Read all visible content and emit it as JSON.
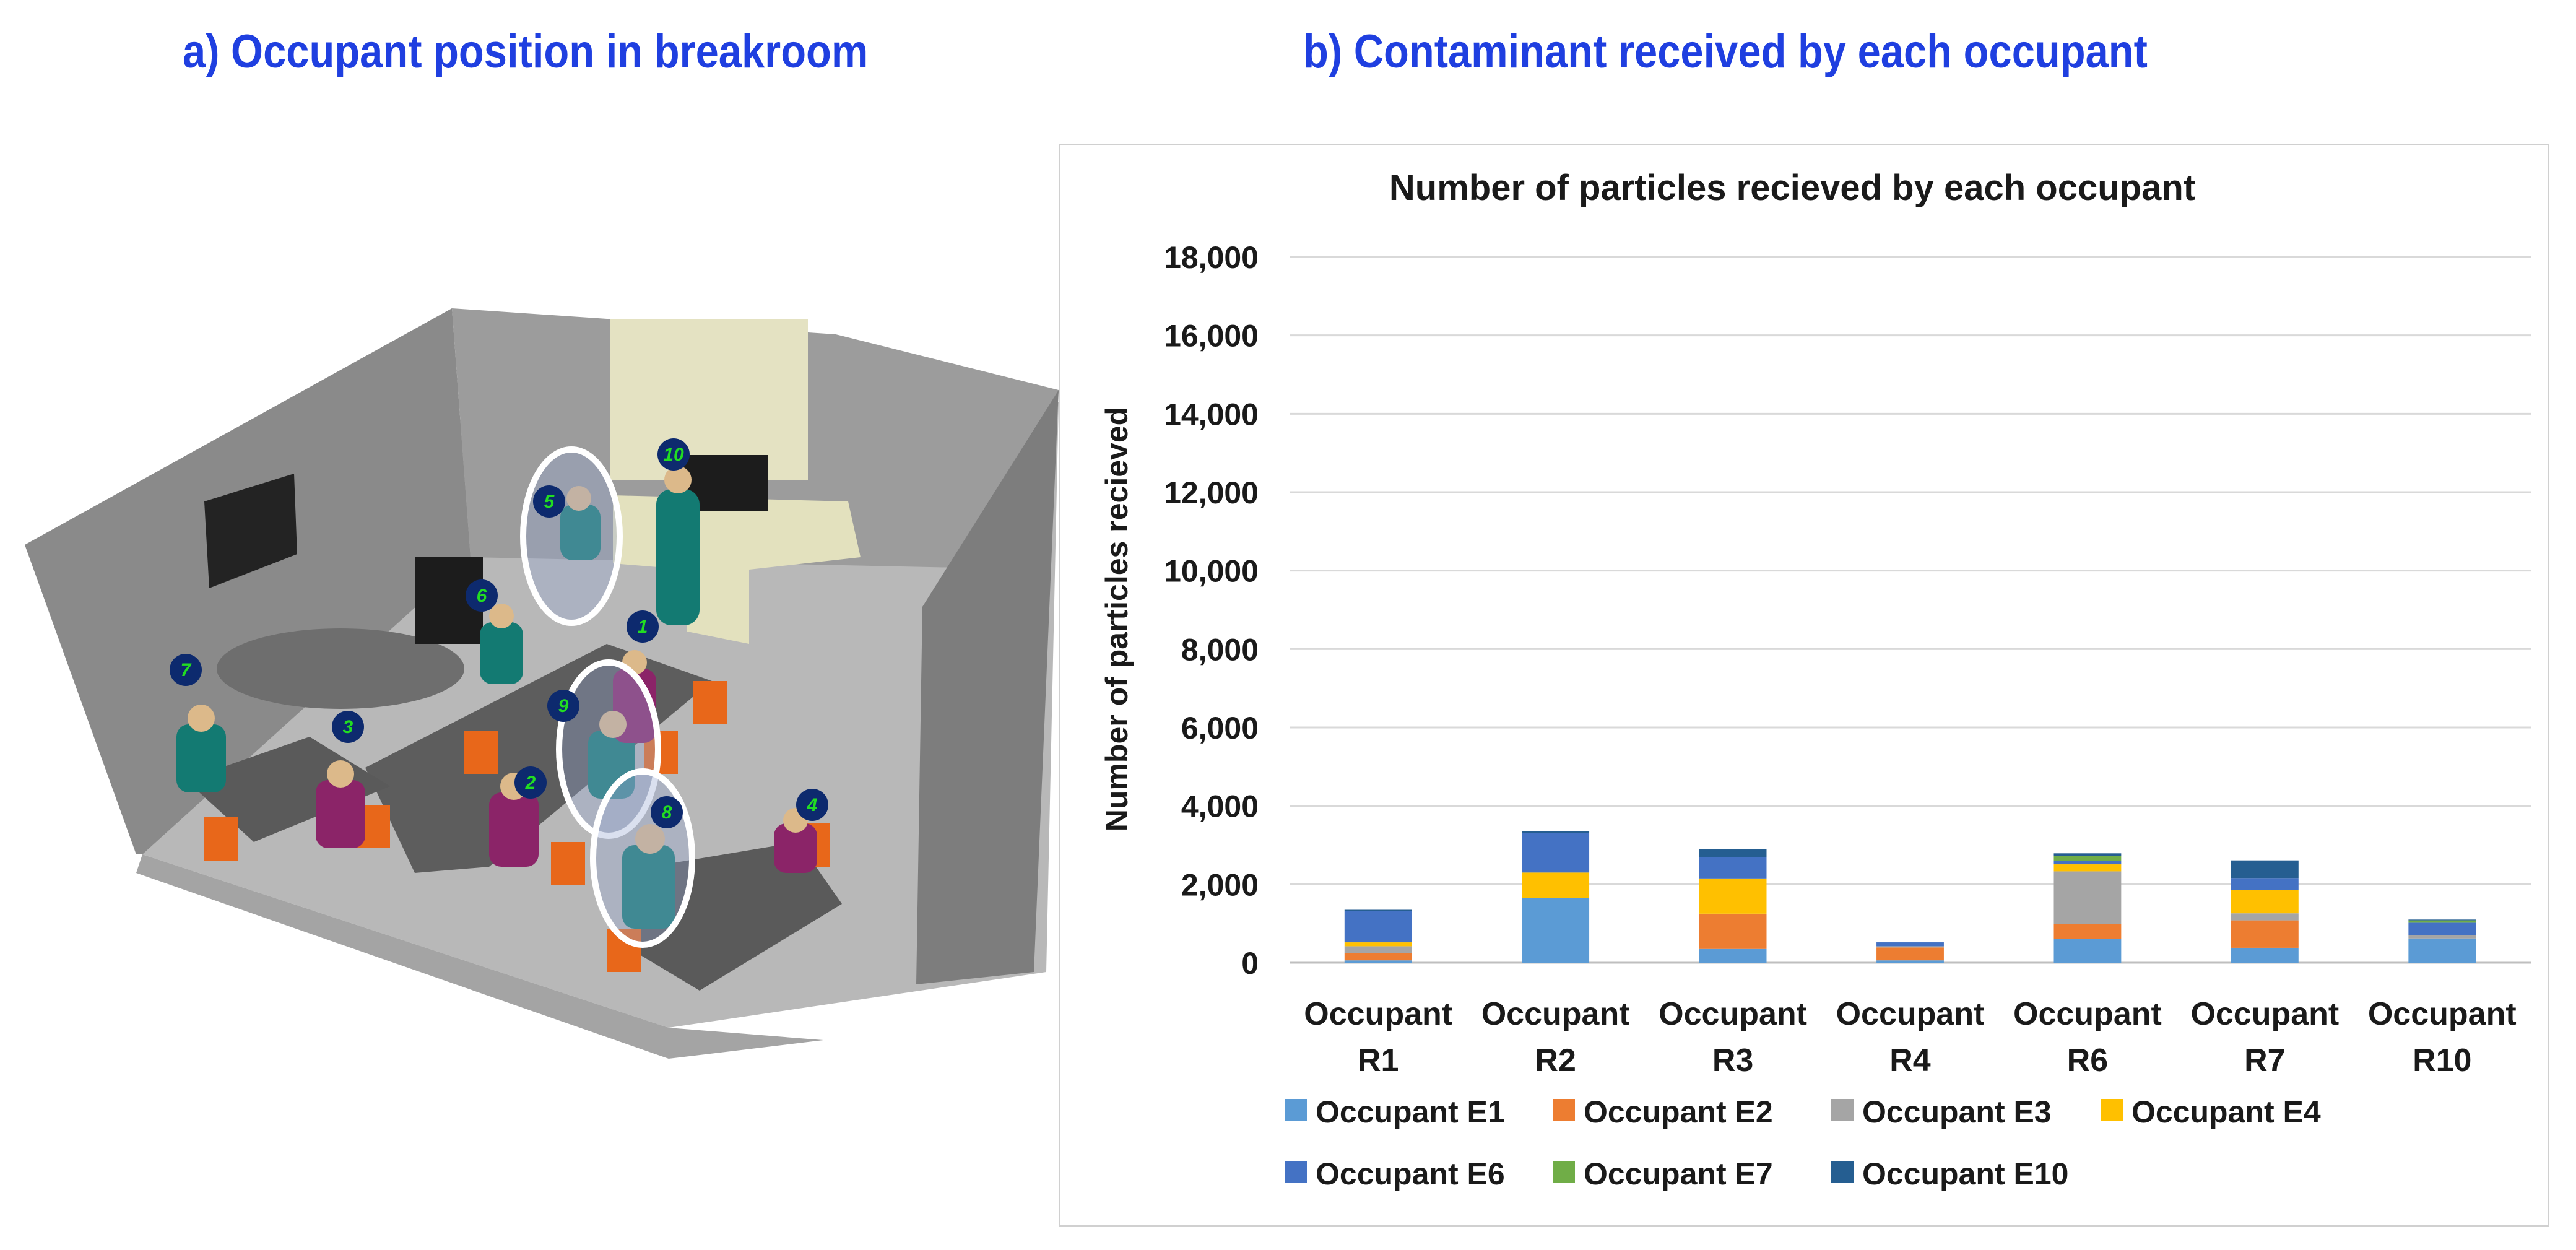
{
  "panels": {
    "a_title": "a) Occupant position in breakroom",
    "b_title": "b) Contaminant received by each occupant"
  },
  "scene": {
    "occupant_numbers": [
      "1",
      "2",
      "3",
      "4",
      "5",
      "6",
      "7",
      "8",
      "9",
      "10"
    ]
  },
  "chart_data": {
    "type": "bar",
    "stacked": true,
    "title": "Number of particles recieved by each occupant",
    "ylabel": "Number of particles recieved",
    "xlabel": "",
    "ylim": [
      0,
      18000
    ],
    "yticks": [
      "0",
      "2,000",
      "4,000",
      "6,000",
      "8,000",
      "10,000",
      "12,000",
      "14,000",
      "16,000",
      "18,000"
    ],
    "categories": [
      [
        "Occupant",
        "R1"
      ],
      [
        "Occupant",
        "R2"
      ],
      [
        "Occupant",
        "R3"
      ],
      [
        "Occupant",
        "R4"
      ],
      [
        "Occupant",
        "R6"
      ],
      [
        "Occupant",
        "R7"
      ],
      [
        "Occupant",
        "R10"
      ]
    ],
    "grid": true,
    "legend_position": "bottom",
    "series": [
      {
        "name": "Occupant E1",
        "color": "#5b9bd5",
        "values": [
          60,
          1650,
          350,
          60,
          600,
          380,
          620
        ]
      },
      {
        "name": "Occupant E2",
        "color": "#ed7d31",
        "values": [
          180,
          0,
          900,
          330,
          380,
          700,
          0
        ]
      },
      {
        "name": "Occupant E3",
        "color": "#a5a5a5",
        "values": [
          180,
          0,
          0,
          30,
          1350,
          180,
          80
        ]
      },
      {
        "name": "Occupant E4",
        "color": "#ffc000",
        "values": [
          100,
          650,
          900,
          0,
          180,
          600,
          0
        ]
      },
      {
        "name": "Occupant E6",
        "color": "#4472c4",
        "values": [
          800,
          1000,
          550,
          100,
          90,
          300,
          320
        ]
      },
      {
        "name": "Occupant E7",
        "color": "#70ad47",
        "values": [
          0,
          0,
          0,
          0,
          120,
          0,
          60
        ]
      },
      {
        "name": "Occupant E10",
        "color": "#255e91",
        "values": [
          30,
          50,
          200,
          10,
          70,
          450,
          20
        ]
      }
    ]
  }
}
